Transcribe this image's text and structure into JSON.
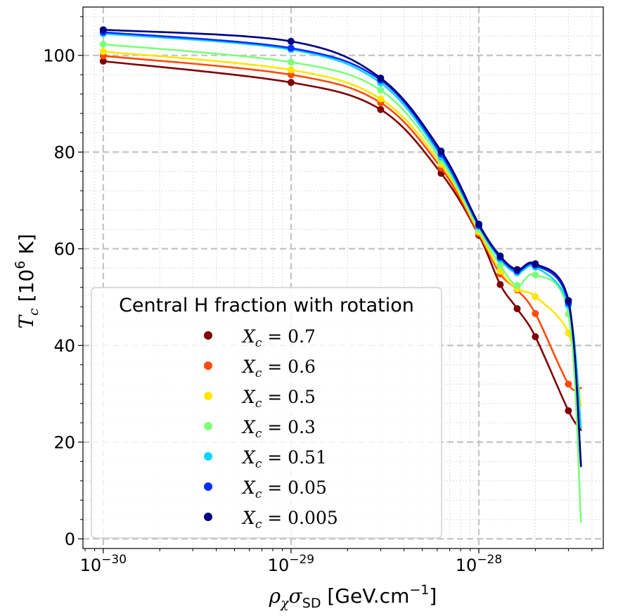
{
  "chart_data": {
    "type": "line",
    "xscale": "log",
    "xlim": [
      7.8e-31,
      4.6e-28
    ],
    "ylim": [
      -2,
      110
    ],
    "xlabel": "ρχσSD [GeV.cm−1]",
    "ylabel": "Tc [106 K]",
    "xlabel_parts": {
      "base1": "ρ",
      "sub1": "χ",
      "base2": "σ",
      "sub2": "SD",
      "main": " [GeV.cm",
      "sup": "−1",
      "end": "]"
    },
    "ylabel_parts": {
      "base": "T",
      "sub": "c",
      "main": " [10",
      "sup": "6",
      "end": " K]"
    },
    "xticks": [
      {
        "value": 1e-30,
        "base": "10",
        "exp": "−30"
      },
      {
        "value": 1e-29,
        "base": "10",
        "exp": "−29"
      },
      {
        "value": 1e-28,
        "base": "10",
        "exp": "−28"
      }
    ],
    "yticks": [
      0,
      20,
      40,
      60,
      80,
      100
    ],
    "grid": {
      "major": true,
      "minor": true,
      "major_style": "dashed",
      "minor_style": "dotted"
    },
    "legend": {
      "title": "Central H fraction with rotation",
      "placement": "lower-left"
    },
    "series": [
      {
        "name": "X_c = 0.7",
        "label_var": "X",
        "label_sub": "c",
        "label_value": " = 0.7",
        "color": "#800000",
        "points": [
          [
            1e-30,
            98.8
          ],
          [
            1e-29,
            94.4
          ],
          [
            3e-29,
            88.8
          ],
          [
            6.3e-29,
            75.6
          ],
          [
            1e-28,
            62.8
          ],
          [
            1.3e-28,
            52.6
          ],
          [
            1.6e-28,
            47.6
          ],
          [
            2e-28,
            41.8
          ],
          [
            3e-28,
            26.5
          ],
          [
            3.5e-28,
            22.5
          ]
        ]
      },
      {
        "name": "X_c = 0.6",
        "label_var": "X",
        "label_sub": "c",
        "label_value": " = 0.6",
        "color": "#ff4a0a",
        "points": [
          [
            1e-30,
            99.9
          ],
          [
            1e-29,
            96
          ],
          [
            3e-29,
            90.2
          ],
          [
            6.3e-29,
            76.7
          ],
          [
            1e-28,
            63.1
          ],
          [
            1.3e-28,
            54.8
          ],
          [
            1.6e-28,
            51.5
          ],
          [
            2e-28,
            46.6
          ],
          [
            3e-28,
            32
          ],
          [
            3.5e-28,
            31.2
          ]
        ]
      },
      {
        "name": "X_c = 0.5",
        "label_var": "X",
        "label_sub": "c",
        "label_value": " = 0.5",
        "color": "#ffe600",
        "points": [
          [
            1e-30,
            100.8
          ],
          [
            1e-29,
            97
          ],
          [
            3e-29,
            91
          ],
          [
            6.3e-29,
            77.5
          ],
          [
            1e-28,
            63.5
          ],
          [
            1.3e-28,
            55.4
          ],
          [
            1.6e-28,
            51.7
          ],
          [
            2e-28,
            50.1
          ],
          [
            3e-28,
            42.6
          ],
          [
            3.5e-28,
            27.5
          ]
        ]
      },
      {
        "name": "X_c = 0.3",
        "label_var": "X",
        "label_sub": "c",
        "label_value": " = 0.3",
        "color": "#7dff7a",
        "points": [
          [
            1e-30,
            102.3
          ],
          [
            1e-29,
            98.6
          ],
          [
            3e-29,
            92.8
          ],
          [
            6.3e-29,
            78.3
          ],
          [
            1e-28,
            64
          ],
          [
            1.3e-28,
            56.6
          ],
          [
            1.6e-28,
            52.4
          ],
          [
            2e-28,
            54.6
          ],
          [
            3e-28,
            46.5
          ],
          [
            3.5e-28,
            3.5
          ]
        ]
      },
      {
        "name": "X_c = 0.51",
        "label_var": "X",
        "label_sub": "c",
        "label_value": " = 0.51",
        "color": "#0ad4ff",
        "points": [
          [
            1e-30,
            104.5
          ],
          [
            1e-29,
            101.2
          ],
          [
            3e-29,
            94.3
          ],
          [
            6.3e-29,
            79
          ],
          [
            1e-28,
            64.6
          ],
          [
            1.3e-28,
            57.8
          ],
          [
            1.6e-28,
            55
          ],
          [
            2e-28,
            56.2
          ],
          [
            3e-28,
            48.3
          ],
          [
            3.5e-28,
            23
          ]
        ]
      },
      {
        "name": "X_c = 0.05",
        "label_var": "X",
        "label_sub": "c",
        "label_value": " = 0.05",
        "color": "#0a2dff",
        "points": [
          [
            1e-30,
            104.8
          ],
          [
            1e-29,
            101.5
          ],
          [
            3e-29,
            94.9
          ],
          [
            6.3e-29,
            79.6
          ],
          [
            1e-28,
            64.8
          ],
          [
            1.3e-28,
            58.2
          ],
          [
            1.6e-28,
            55.4
          ],
          [
            2e-28,
            56.6
          ],
          [
            3e-28,
            48.8
          ],
          [
            3.5e-28,
            15.5
          ]
        ]
      },
      {
        "name": "X_c = 0.005",
        "label_var": "X",
        "label_sub": "c",
        "label_value": " = 0.005",
        "color": "#000080",
        "points": [
          [
            1e-30,
            105.3
          ],
          [
            1e-29,
            102.9
          ],
          [
            3e-29,
            95.3
          ],
          [
            6.3e-29,
            80.2
          ],
          [
            1e-28,
            65.1
          ],
          [
            1.3e-28,
            58.5
          ],
          [
            1.6e-28,
            55.7
          ],
          [
            2e-28,
            56.9
          ],
          [
            3e-28,
            49.3
          ],
          [
            3.5e-28,
            15
          ]
        ]
      }
    ]
  }
}
